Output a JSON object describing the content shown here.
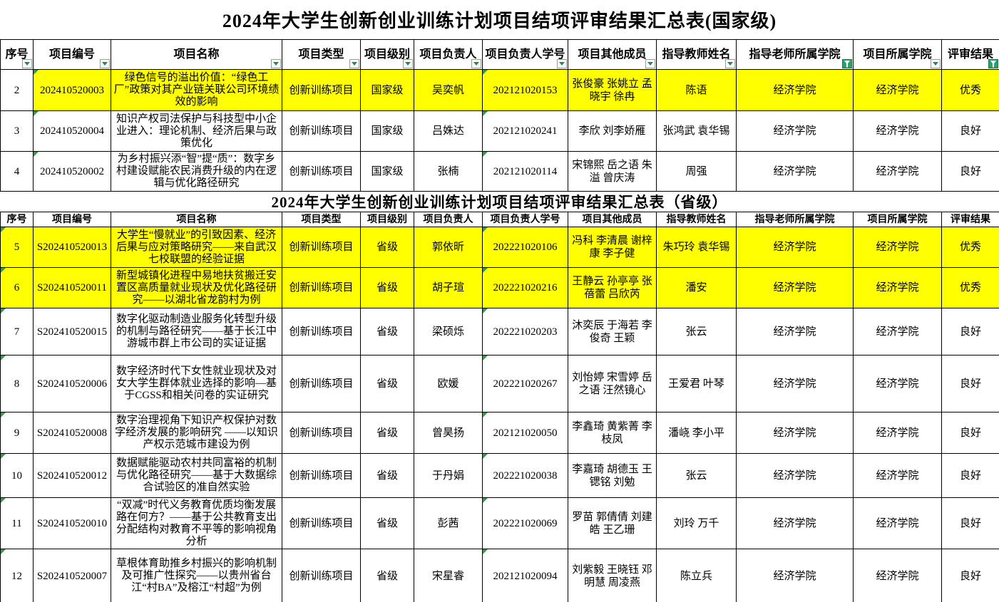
{
  "colors": {
    "highlight_yellow": "#ffff00",
    "grid_line": "#000000",
    "filter_green": "#26a269",
    "dropdown_arrow_green": "#1e8e4e",
    "error_triangle_green": "#2f9e44"
  },
  "icons": {
    "dropdown": "chevron-down-icon",
    "active_filter": "funnel-icon",
    "cell_flag": "error-indicator-triangle"
  },
  "tables": [
    {
      "title": "2024年大学生创新创业训练计划项目结项评审结果汇总表(国家级)",
      "columns": [
        "序号",
        "项目编号",
        "项目名称",
        "项目类型",
        "项目级别",
        "项目负责人",
        "项目负责人学号",
        "项目其他成员",
        "指导教师姓名",
        "指导老师所属学院",
        "项目所属学院",
        "评审结果"
      ],
      "has_filter_buttons": true,
      "active_filter_columns": [
        9,
        11
      ],
      "rows": [
        {
          "seq": "2",
          "code": "202410520003",
          "name": "绿色信号的溢出价值：“绿色工厂”政策对其产业链关联公司环境绩效的影响",
          "type": "创新训练项目",
          "level": "国家级",
          "leader": "吴奕帆",
          "student_id": "202121020153",
          "members": "张俊豪 张姚立 孟晓宇 徐冉",
          "advisor": "陈语",
          "advisor_college": "经济学院",
          "project_college": "经济学院",
          "result": "优秀",
          "highlight": true,
          "seq_highlight": false,
          "flags": [
            "code",
            "student_id"
          ]
        },
        {
          "seq": "3",
          "code": "202410520004",
          "name": "知识产权司法保护与科技型中小企业进入：理论机制、经济后果与政策优化",
          "type": "创新训练项目",
          "level": "国家级",
          "leader": "吕姝达",
          "student_id": "202121020241",
          "members": "李欣 刘李娇雁",
          "advisor": "张鸿武 袁华锡",
          "advisor_college": "经济学院",
          "project_college": "经济学院",
          "result": "良好",
          "highlight": false,
          "flags": [
            "code",
            "student_id"
          ]
        },
        {
          "seq": "4",
          "code": "202410520002",
          "name": "为乡村振兴添“智”提“质”：数字乡村建设赋能农民消费升级的内在逻辑与优化路径研究",
          "type": "创新训练项目",
          "level": "国家级",
          "leader": "张楠",
          "student_id": "202121020114",
          "members": "宋锦熙 岳之语 朱溢 曾庆涛",
          "advisor": "周强",
          "advisor_college": "经济学院",
          "project_college": "经济学院",
          "result": "良好",
          "highlight": false,
          "flags": [
            "code",
            "student_id"
          ]
        }
      ]
    },
    {
      "title": "2024年大学生创新创业训练计划项目结项评审结果汇总表（省级）",
      "columns": [
        "序号",
        "项目编号",
        "项目名称",
        "项目类型",
        "项目级别",
        "项目负责人",
        "项目负责人学号",
        "项目其他成员",
        "指导教师姓名",
        "指导老师所属学院",
        "项目所属学院",
        "评审结果"
      ],
      "has_filter_buttons": false,
      "active_filter_columns": [],
      "rows": [
        {
          "seq": "5",
          "code": "S202410520013",
          "name": "大学生“慢就业”的引致因素、经济后果与应对策略研究——来自武汉七校联盟的经验证据",
          "type": "创新训练项目",
          "level": "省级",
          "leader": "郭依昕",
          "student_id": "202221020106",
          "members": "冯科 李清晨 谢梓康 李子健",
          "advisor": "朱巧玲 袁华锡",
          "advisor_college": "经济学院",
          "project_college": "经济学院",
          "result": "优秀",
          "highlight": true,
          "flags": [
            "seq",
            "student_id"
          ]
        },
        {
          "seq": "6",
          "code": "S202410520011",
          "name": "新型城镇化进程中易地扶贫搬迁安置区高质量就业现状及优化路径研究——以湖北省龙韵村为例",
          "type": "创新训练项目",
          "level": "省级",
          "leader": "胡子瑄",
          "student_id": "202221020216",
          "members": "王静云 孙亭亭 张蓓蕾 吕欣芮",
          "advisor": "潘安",
          "advisor_college": "经济学院",
          "project_college": "经济学院",
          "result": "优秀",
          "highlight": true,
          "flags": [
            "seq",
            "student_id"
          ]
        },
        {
          "seq": "7",
          "code": "S202410520015",
          "name": "数字化驱动制造业服务化转型升级的机制与路径研究——基于长江中游城市群上市公司的实证证据",
          "type": "创新训练项目",
          "level": "省级",
          "leader": "梁硕烁",
          "student_id": "202221020203",
          "members": "沐奕辰 于海若 李俊奇 王颖",
          "advisor": "张云",
          "advisor_college": "经济学院",
          "project_college": "经济学院",
          "result": "良好",
          "highlight": false,
          "flags": [
            "seq",
            "student_id"
          ]
        },
        {
          "seq": "8",
          "code": "S202410520006",
          "name": "数字经济时代下女性就业现状及对女大学生群体就业选择的影响—基于CGSS和相关问卷的实证研究",
          "type": "创新训练项目",
          "level": "省级",
          "leader": "欧媛",
          "student_id": "202221020267",
          "members": "刘怡婷 宋雪婷 岳之语 汪然镜心",
          "advisor": "王爱君 叶琴",
          "advisor_college": "经济学院",
          "project_college": "经济学院",
          "result": "良好",
          "highlight": false,
          "flags": [
            "seq",
            "student_id"
          ]
        },
        {
          "seq": "9",
          "code": "S202410520008",
          "name": "数字治理视角下知识产权保护对数字经济发展的影响研究 ——以知识产权示范城市建设为例",
          "type": "创新训练项目",
          "level": "省级",
          "leader": "曾昊扬",
          "student_id": "202121020050",
          "members": "李鑫琦 黄紫菁 李枝凤",
          "advisor": "潘峣 李小平",
          "advisor_college": "经济学院",
          "project_college": "经济学院",
          "result": "良好",
          "highlight": false,
          "flags": [
            "seq",
            "student_id"
          ]
        },
        {
          "seq": "10",
          "code": "S202410520012",
          "name": "数据赋能驱动农村共同富裕的机制与优化路径研究——基于大数据综合试验区的准自然实验",
          "type": "创新训练项目",
          "level": "省级",
          "leader": "于丹娟",
          "student_id": "202221020038",
          "members": "李嘉琦 胡德玉 王锶铭 刘勉",
          "advisor": "张云",
          "advisor_college": "经济学院",
          "project_college": "经济学院",
          "result": "良好",
          "highlight": false,
          "flags": [
            "seq",
            "student_id"
          ]
        },
        {
          "seq": "11",
          "code": "S202410520010",
          "name": "“双减”时代义务教育优质均衡发展路在何方？——基于公共教育支出分配结构对教育不平等的影响视角分析",
          "type": "创新训练项目",
          "level": "省级",
          "leader": "彭茜",
          "student_id": "202221020069",
          "members": "罗苗 郭倩倩 刘建皓 王乙珊",
          "advisor": "刘玲 万千",
          "advisor_college": "经济学院",
          "project_college": "经济学院",
          "result": "良好",
          "highlight": false,
          "flags": [
            "seq",
            "student_id"
          ]
        },
        {
          "seq": "12",
          "code": "S202410520007",
          "name": "草根体育助推乡村振兴的影响机制及可推广性探究——以贵州省台江“村BA”及榕江“村超”为例",
          "type": "创新训练项目",
          "level": "省级",
          "leader": "宋星睿",
          "student_id": "202121020094",
          "members": "刘紫毅 王晓钰 邓明慧 周凌燕",
          "advisor": "陈立兵",
          "advisor_college": "经济学院",
          "project_college": "经济学院",
          "result": "良好",
          "highlight": false,
          "flags": [
            "seq",
            "student_id"
          ]
        }
      ]
    }
  ]
}
